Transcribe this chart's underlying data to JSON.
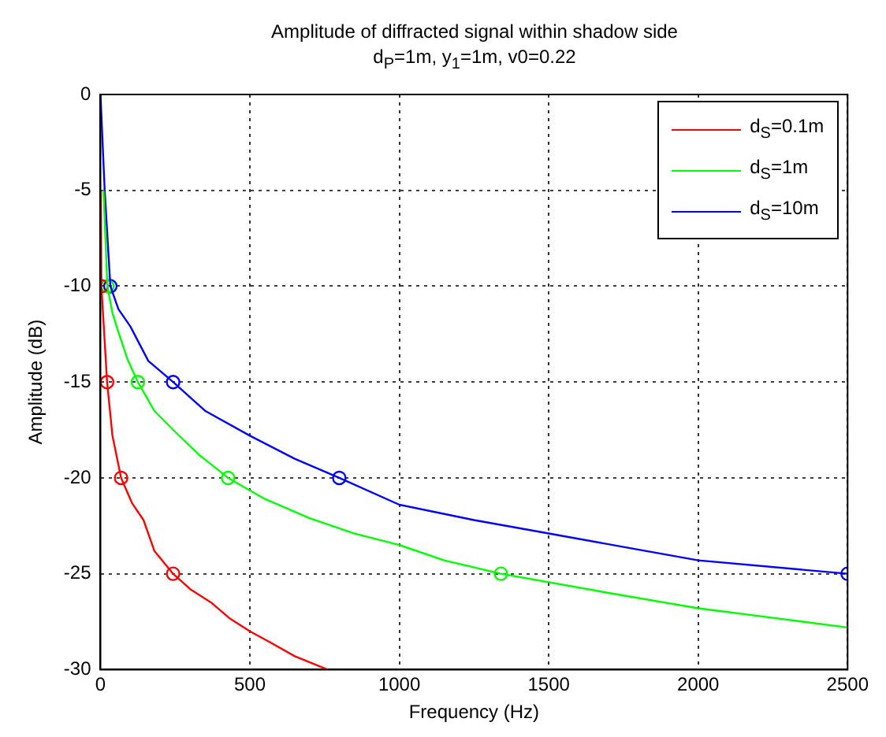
{
  "chart_data": {
    "type": "line",
    "title": "Amplitude of diffracted signal within shadow side",
    "subtitle": "d$_{P}$=1m, y$_{1}$=1m, v0=0.22",
    "xlabel": "Frequency (Hz)",
    "ylabel": "Amplitude (dB)",
    "xlim": [
      0,
      2500
    ],
    "xticks": [
      0,
      500,
      1000,
      1500,
      2000,
      2500
    ],
    "ylim": [
      -30,
      0
    ],
    "yticks": [
      -30,
      -25,
      -20,
      -15,
      -10,
      -5,
      0
    ],
    "grid": true,
    "legend": "top right",
    "line_style": "solid",
    "series": [
      {
        "name": "d$_{S}$=0.1m",
        "type": "line",
        "marker": "none",
        "color": "#ff0000",
        "x": [
          1,
          3,
          22,
          40,
          69,
          105,
          144,
          180,
          243,
          300,
          370,
          430,
          500,
          570,
          650,
          760
        ],
        "values": [
          -5,
          -10,
          -15,
          -17.8,
          -20,
          -21.3,
          -22.2,
          -23.8,
          -25,
          -25.8,
          -26.5,
          -27.3,
          -28,
          -28.6,
          -29.3,
          -30
        ]
      },
      {
        "name": "d$_{S}$=1m",
        "type": "line",
        "marker": "none",
        "color": "#00ff00",
        "x": [
          10,
          23,
          40,
          60,
          90,
          125,
          180,
          250,
          330,
          427,
          550,
          700,
          850,
          1000,
          1150,
          1340,
          1700,
          2000,
          2250,
          2500
        ],
        "values": [
          -5,
          -10,
          -11.4,
          -12.4,
          -13.8,
          -15,
          -16.5,
          -17.6,
          -18.8,
          -20,
          -21.1,
          -22.1,
          -22.9,
          -23.5,
          -24.3,
          -25,
          -26,
          -26.8,
          -27.3,
          -27.8
        ]
      },
      {
        "name": "d$_{S}$=10m",
        "type": "line",
        "marker": "none",
        "color": "#0000ff",
        "x": [
          0,
          14,
          33,
          60,
          100,
          160,
          243,
          350,
          500,
          650,
          799,
          1000,
          1250,
          1500,
          1750,
          2000,
          2500
        ],
        "values": [
          0,
          -5,
          -10,
          -11.2,
          -12.1,
          -13.9,
          -15,
          -16.5,
          -17.8,
          -19,
          -20,
          -21.4,
          -22.2,
          -22.9,
          -23.6,
          -24.3,
          -25
        ]
      },
      {
        "type": "scatter",
        "marker": "circle",
        "color": "#ff0000",
        "x": [
          3,
          22,
          69,
          243
        ],
        "values": [
          -10,
          -15,
          -20,
          -25
        ]
      },
      {
        "type": "scatter",
        "marker": "circle",
        "color": "#00ff00",
        "x": [
          23,
          125,
          427,
          1340
        ],
        "values": [
          -10,
          -15,
          -20,
          -25
        ]
      },
      {
        "type": "scatter",
        "marker": "circle",
        "color": "#0000ff",
        "x": [
          33,
          243,
          799,
          2500
        ],
        "values": [
          -10,
          -15,
          -20,
          -25
        ]
      }
    ]
  }
}
